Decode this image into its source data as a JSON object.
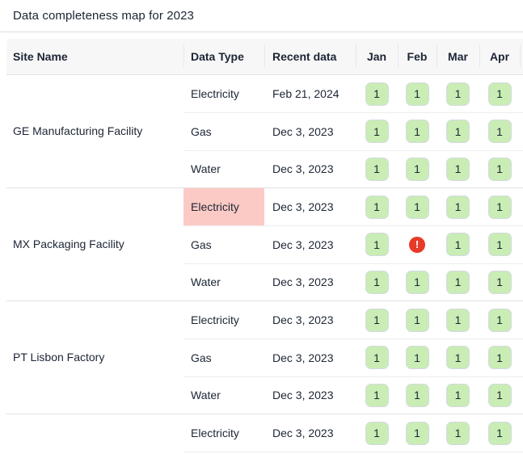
{
  "title": "Data completeness map for 2023",
  "columns": {
    "site": "Site Name",
    "type": "Data Type",
    "recent": "Recent data",
    "months": [
      "Jan",
      "Feb",
      "Mar",
      "Apr"
    ]
  },
  "colors": {
    "complete_green": "#c9edb4",
    "highlight_pink": "#fbcac5",
    "error_red": "#e73a28",
    "header_bg": "#f7f7f8",
    "text": "#1c2534"
  },
  "icons": {
    "error_icon": "exclamation-circle",
    "error_glyph": "!"
  },
  "groups": [
    {
      "site": "GE Manufacturing Facility",
      "rows": [
        {
          "type": "Electricity",
          "recent": "Feb 21, 2024",
          "highlight": false,
          "months": [
            "1",
            "1",
            "1",
            "1"
          ]
        },
        {
          "type": "Gas",
          "recent": "Dec 3, 2023",
          "highlight": false,
          "months": [
            "1",
            "1",
            "1",
            "1"
          ]
        },
        {
          "type": "Water",
          "recent": "Dec 3, 2023",
          "highlight": false,
          "months": [
            "1",
            "1",
            "1",
            "1"
          ]
        }
      ]
    },
    {
      "site": "MX Packaging Facility",
      "rows": [
        {
          "type": "Electricity",
          "recent": "Dec 3, 2023",
          "highlight": true,
          "months": [
            "1",
            "1",
            "1",
            "1"
          ]
        },
        {
          "type": "Gas",
          "recent": "Dec 3, 2023",
          "highlight": false,
          "months": [
            "1",
            "error",
            "1",
            "1"
          ]
        },
        {
          "type": "Water",
          "recent": "Dec 3, 2023",
          "highlight": false,
          "months": [
            "1",
            "1",
            "1",
            "1"
          ]
        }
      ]
    },
    {
      "site": "PT Lisbon Factory",
      "rows": [
        {
          "type": "Electricity",
          "recent": "Dec 3, 2023",
          "highlight": false,
          "months": [
            "1",
            "1",
            "1",
            "1"
          ]
        },
        {
          "type": "Gas",
          "recent": "Dec 3, 2023",
          "highlight": false,
          "months": [
            "1",
            "1",
            "1",
            "1"
          ]
        },
        {
          "type": "Water",
          "recent": "Dec 3, 2023",
          "highlight": false,
          "months": [
            "1",
            "1",
            "1",
            "1"
          ]
        }
      ]
    },
    {
      "site": "",
      "partial": true,
      "rows": [
        {
          "type": "Electricity",
          "recent": "Dec 3, 2023",
          "highlight": false,
          "months": [
            "1",
            "1",
            "1",
            "1"
          ]
        }
      ]
    }
  ]
}
